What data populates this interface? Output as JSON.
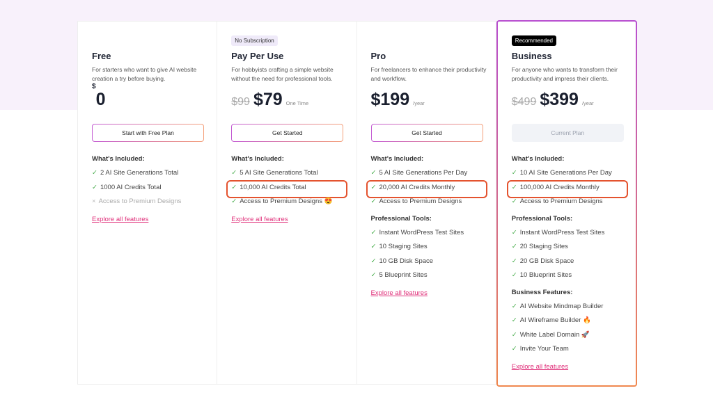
{
  "plans": [
    {
      "badge": "",
      "title": "Free",
      "desc": "For starters who want to give AI website creation a try before buying.",
      "old_price": "",
      "currency": "$",
      "price": "0",
      "period": "",
      "button": "Start with Free Plan",
      "button_disabled": false,
      "sections": [
        {
          "heading": "What's Included:",
          "items": [
            {
              "text": "2 AI Site Generations Total",
              "icon": "check-icon"
            },
            {
              "text": "1000 AI Credits Total",
              "icon": "check-icon"
            },
            {
              "text": "Access to Premium Designs",
              "icon": "x-icon",
              "disabled": true
            }
          ]
        }
      ],
      "explore": "Explore all features"
    },
    {
      "badge": "No Subscription",
      "title": "Pay Per Use",
      "desc": "For hobbyists crafting a simple website without the need for professional tools.",
      "old_price": "$99",
      "price": "$79",
      "period": "One Time",
      "button": "Get Started",
      "button_disabled": false,
      "sections": [
        {
          "heading": "What's Included:",
          "items": [
            {
              "text": "5 AI Site Generations Total",
              "icon": "check-icon"
            },
            {
              "text": "10,000 AI Credits Total",
              "icon": "check-icon",
              "highlighted": true
            },
            {
              "text": "Access to Premium Designs 😍",
              "icon": "check-icon"
            }
          ]
        }
      ],
      "explore": "Explore all features"
    },
    {
      "badge": "",
      "title": "Pro",
      "desc": "For freelancers to enhance their productivity and workflow.",
      "old_price": "",
      "price": "$199",
      "period": "/year",
      "button": "Get Started",
      "button_disabled": false,
      "sections": [
        {
          "heading": "What's Included:",
          "items": [
            {
              "text": "5 AI Site Generations Per Day",
              "icon": "check-icon"
            },
            {
              "text": "20,000 AI Credits Monthly",
              "icon": "check-icon",
              "highlighted": true
            },
            {
              "text": "Access to Premium Designs",
              "icon": "check-icon"
            }
          ]
        },
        {
          "heading": "Professional Tools:",
          "items": [
            {
              "text": "Instant WordPress Test Sites",
              "icon": "check-icon"
            },
            {
              "text": "10 Staging Sites",
              "icon": "check-icon"
            },
            {
              "text": "10 GB Disk Space",
              "icon": "check-icon"
            },
            {
              "text": "5 Blueprint Sites",
              "icon": "check-icon"
            }
          ]
        }
      ],
      "explore": "Explore all features"
    },
    {
      "badge": "Recommended",
      "title": "Business",
      "desc": "For anyone who wants to transform their productivity and impress their clients.",
      "old_price": "$499",
      "price": "$399",
      "period": "/year",
      "button": "Current Plan",
      "button_disabled": true,
      "sections": [
        {
          "heading": "What's Included:",
          "items": [
            {
              "text": "10 AI Site Generations Per Day",
              "icon": "check-icon"
            },
            {
              "text": "100,000 AI Credits Monthly",
              "icon": "check-icon",
              "highlighted": true
            },
            {
              "text": "Access to Premium Designs",
              "icon": "check-icon"
            }
          ]
        },
        {
          "heading": "Professional Tools:",
          "items": [
            {
              "text": "Instant WordPress Test Sites",
              "icon": "check-icon"
            },
            {
              "text": "20 Staging Sites",
              "icon": "check-icon"
            },
            {
              "text": "20 GB Disk Space",
              "icon": "check-icon"
            },
            {
              "text": "10 Blueprint Sites",
              "icon": "check-icon"
            }
          ]
        },
        {
          "heading": "Business Features:",
          "items": [
            {
              "text": "AI Website Mindmap Builder",
              "icon": "check-icon"
            },
            {
              "text": "AI Wireframe Builder 🔥",
              "icon": "check-icon"
            },
            {
              "text": "White Label Domain 🚀",
              "icon": "check-icon"
            },
            {
              "text": "Invite Your Team",
              "icon": "check-icon"
            }
          ]
        }
      ],
      "explore": "Explore all features"
    }
  ],
  "colors": {
    "accent_link": "#e0307a",
    "highlight_border": "#e4532f",
    "check": "#4caf50",
    "band": "#f8f1fb"
  }
}
